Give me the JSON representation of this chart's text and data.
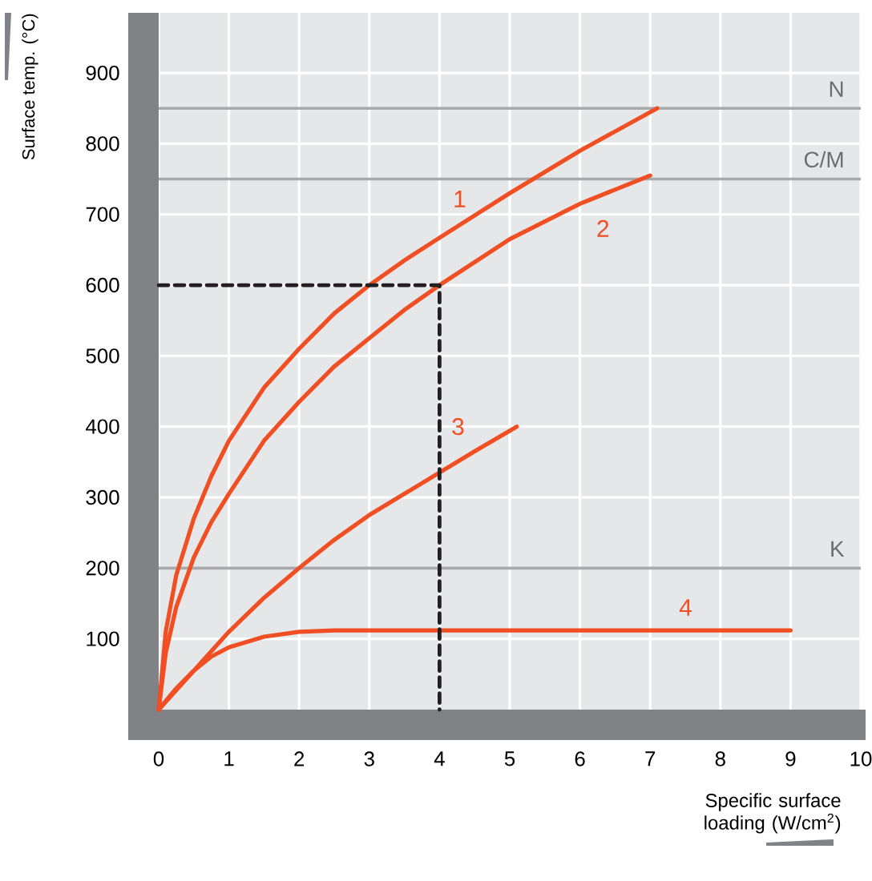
{
  "chart_data": {
    "type": "line",
    "xlabel": "Specific surface loading (W/cm$^{2}$)",
    "ylabel": "Surface temp. (°C)",
    "xlim": [
      0,
      10
    ],
    "ylim": [
      0,
      985
    ],
    "xticks": [
      0,
      1,
      2,
      3,
      4,
      5,
      6,
      7,
      8,
      9,
      10
    ],
    "yticks": [
      100,
      200,
      300,
      400,
      500,
      600,
      700,
      800,
      900
    ],
    "grid": true,
    "marker": "none",
    "series": [
      {
        "name": "1",
        "color": "#f04e23",
        "x": [
          0,
          0.1,
          0.25,
          0.5,
          0.75,
          1,
          1.5,
          2,
          2.5,
          3,
          3.5,
          4,
          5,
          6,
          7.1
        ],
        "values": [
          0,
          110,
          190,
          270,
          330,
          380,
          455,
          510,
          560,
          600,
          635,
          667,
          730,
          790,
          850
        ]
      },
      {
        "name": "2",
        "color": "#f04e23",
        "x": [
          0,
          0.1,
          0.25,
          0.5,
          0.75,
          1,
          1.5,
          2,
          2.5,
          3,
          3.5,
          4,
          5,
          6,
          7
        ],
        "values": [
          0,
          80,
          145,
          215,
          265,
          305,
          380,
          435,
          485,
          525,
          565,
          600,
          665,
          715,
          755
        ]
      },
      {
        "name": "3",
        "color": "#f04e23",
        "x": [
          0,
          0.5,
          1,
          1.5,
          2,
          2.5,
          3,
          3.5,
          4,
          4.5,
          5.1
        ],
        "values": [
          0,
          55,
          110,
          158,
          200,
          240,
          275,
          305,
          335,
          365,
          400
        ]
      },
      {
        "name": "4",
        "color": "#f04e23",
        "x": [
          0,
          0.25,
          0.5,
          0.75,
          1,
          1.5,
          2,
          2.5,
          9
        ],
        "values": [
          0,
          30,
          55,
          75,
          88,
          103,
          110,
          112,
          112
        ]
      },
      {
        "color": "#231f20",
        "line_style": "dashed",
        "x": [
          0,
          4,
          4
        ],
        "values": [
          600,
          600,
          0
        ]
      }
    ],
    "ref_lines": [
      {
        "axis": "y",
        "value": 850,
        "label": "N",
        "color": "#a7a9ac"
      },
      {
        "axis": "y",
        "value": 750,
        "label": "C/M",
        "color": "#a7a9ac"
      },
      {
        "axis": "y",
        "value": 200,
        "label": "K",
        "color": "#a7a9ac"
      }
    ]
  }
}
